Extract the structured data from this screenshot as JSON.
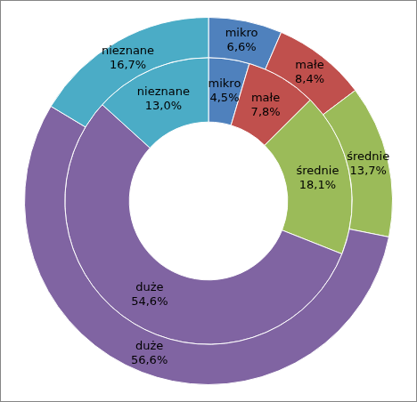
{
  "chart_data": {
    "type": "doughnut",
    "categories": [
      "mikro",
      "małe",
      "średnie",
      "duże",
      "nieznane"
    ],
    "colors": [
      "#4f81bd",
      "#c0504d",
      "#9bbb59",
      "#8064a2",
      "#4bacc6"
    ],
    "data_labels": true,
    "series": [
      {
        "values": [
          6.6,
          8.4,
          13.7,
          56.6,
          16.7
        ],
        "value_labels": [
          "6,6%",
          "8,4%",
          "13,7%",
          "56,6%",
          "16,7%"
        ]
      },
      {
        "values": [
          4.5,
          7.8,
          18.1,
          54.6,
          13.0
        ],
        "value_labels": [
          "4,5%",
          "7,8%",
          "18,1%",
          "54,6%",
          "13,0%"
        ]
      }
    ]
  }
}
